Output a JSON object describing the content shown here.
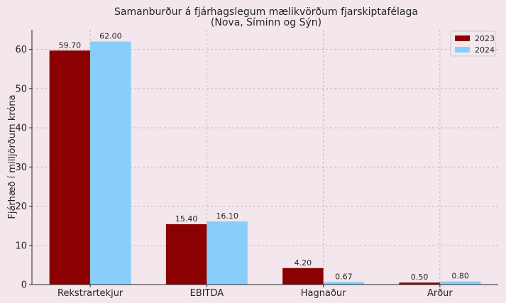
{
  "chart_data": {
    "type": "bar",
    "title": "Samanburður á fjárhagslegum mælikvörðum fjarskiptafélaga",
    "subtitle": "(Nova, Síminn og Sýn)",
    "xlabel": "",
    "ylabel": "Fjárhæð í milljörðum króna",
    "categories": [
      "Rekstrartekjur",
      "EBITDA",
      "Hagnaður",
      "Arður"
    ],
    "series": [
      {
        "name": "2023",
        "color": "#8b0000",
        "values": [
          59.7,
          15.4,
          4.2,
          0.5
        ],
        "labels": [
          "59.70",
          "15.40",
          "4.20",
          "0.50"
        ]
      },
      {
        "name": "2024",
        "color": "#87cefa",
        "values": [
          62.0,
          16.1,
          0.67,
          0.8
        ],
        "labels": [
          "62.00",
          "16.10",
          "0.67",
          "0.80"
        ]
      }
    ],
    "ylim": [
      0,
      65
    ],
    "yticks": [
      0,
      10,
      20,
      30,
      40,
      50,
      60
    ],
    "grid": true,
    "legend_position": "top-right"
  }
}
